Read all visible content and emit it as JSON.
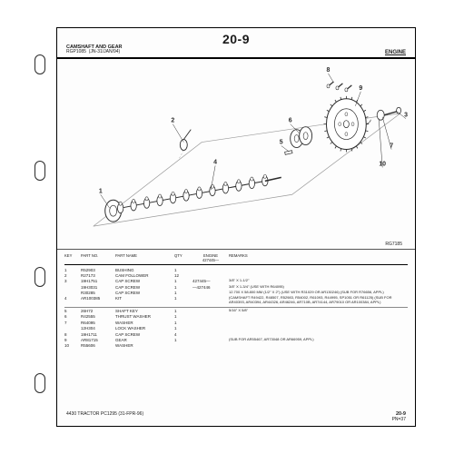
{
  "page": {
    "number": "20-9",
    "section_title": "CAMSHAFT AND GEAR",
    "section_sub1": "RGP1085",
    "section_sub2": "(JN-31/JAN/94)",
    "header_right": "ENGINE",
    "model_tag": "RG7185",
    "footer_left": "4430 TRACTOR   PC1295   (31-FPR-96)",
    "footer_right_top": "20-9",
    "footer_right_sub": "PN=37"
  },
  "table": {
    "cols": {
      "key": "KEY",
      "partno": "PART NO.",
      "partname": "PART NAME",
      "qty": "QTY",
      "engine": "ENGINE",
      "remarks": "REMARKS"
    },
    "engine_serial_break": "427445—",
    "rows1": [
      {
        "key": "1",
        "partno": "R52903",
        "partname": "BUSHING",
        "qty": "1",
        "engine": "",
        "remarks": ""
      },
      {
        "key": "2",
        "partno": "R27173",
        "partname": "CAM FOLLOWER",
        "qty": "12",
        "engine": "",
        "remarks": ""
      },
      {
        "key": "3",
        "partno": "19H1751",
        "partname": "CAP SCREW",
        "qty": "1",
        "engine": "427445—",
        "remarks": "3/8\" X 1-1/2\""
      },
      {
        "key": "",
        "partno": "19H3031",
        "partname": "CAP SCREW",
        "qty": "1",
        "engine": "—427446",
        "remarks": "3/8\" X 1-3/4\"  (USE WITH R64095)"
      },
      {
        "key": "",
        "partno": "R30285",
        "partname": "CAP SCREW",
        "qty": "1",
        "engine": "",
        "remarks": "12.700 X 58.800 MM (1/2\" X 2\")  (USE WITH R31029 OR AR130246) (SUB FOR R76656, APPL)"
      },
      {
        "key": "4",
        "partno": "AR100385",
        "partname": "KIT",
        "qty": "1",
        "engine": "",
        "remarks": "(CAMSHAFT R49422, R48507, R52983, R54002, R61093, R44995, SP1051 OR R61125) (SUB FOR AR40393, AR40394, AR44326, AR46246, AR710B, AR74144, AR79010 OR AR100384, APPL)"
      }
    ],
    "rows2": [
      {
        "key": "5",
        "partno": "26H72",
        "partname": "SHAFT KEY",
        "qty": "1",
        "engine": "",
        "remarks": "5/16\" X 5/8\""
      },
      {
        "key": "6",
        "partno": "R42555",
        "partname": "THRUST WASHER",
        "qty": "1",
        "engine": "",
        "remarks": ""
      },
      {
        "key": "7",
        "partno": "R64095",
        "partname": "WASHER",
        "qty": "1",
        "engine": "",
        "remarks": ""
      },
      {
        "key": "",
        "partno": "12H304",
        "partname": "LOCK WASHER",
        "qty": "1",
        "engine": "",
        "remarks": ""
      },
      {
        "key": "8",
        "partno": "19H1711",
        "partname": "CAP SCREW",
        "qty": "4",
        "engine": "",
        "remarks": ""
      },
      {
        "key": "9",
        "partno": "AR81715",
        "partname": "GEAR",
        "qty": "1",
        "engine": "",
        "remarks": "(SUB FOR AR55467, AR73048 OR AR66959, APPL)"
      },
      {
        "key": "10",
        "partno": "R55606",
        "partname": "WASHER",
        "qty": "",
        "engine": "",
        "remarks": ""
      }
    ]
  },
  "style": {
    "hole_count": 4,
    "gear_teeth": 24,
    "colors": {
      "line": "#2b2b2b",
      "light": "#9a9a9a"
    }
  },
  "callouts": [
    "1",
    "2",
    "3",
    "4",
    "5",
    "6",
    "7",
    "8",
    "9",
    "10"
  ]
}
